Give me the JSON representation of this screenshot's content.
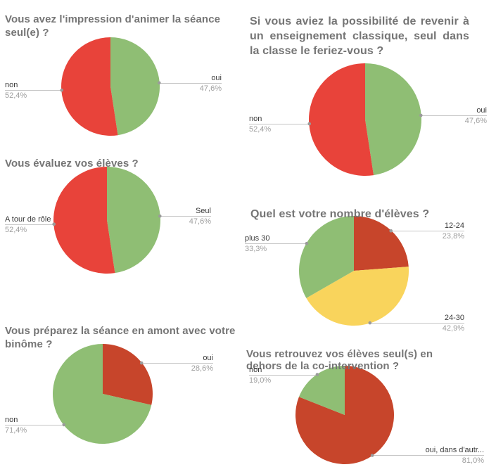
{
  "style": {
    "background": "#ffffff",
    "title_color": "#757575",
    "label_color": "#3b3b3b",
    "percent_color": "#9e9e9e",
    "leader_line_color": "#c6c6c6",
    "leader_dot_color": "#9b9b9b",
    "palette": {
      "green": "#8fbe74",
      "bright_red": "#e8433a",
      "brick_red": "#c7452b",
      "yellow": "#f9d45c"
    }
  },
  "chart_data": [
    {
      "type": "pie",
      "title": "Vous avez l'impression d'animer la séance seul(e) ?",
      "legend_position": "outside-labels",
      "slices": [
        {
          "label": "oui",
          "value": 47.6,
          "pct_text": "47,6%",
          "color": "#8fbe74",
          "label_side": "right"
        },
        {
          "label": "non",
          "value": 52.4,
          "pct_text": "52,4%",
          "color": "#e8433a",
          "label_side": "left"
        }
      ]
    },
    {
      "type": "pie",
      "title": "Si vous aviez la possibilité de revenir à un enseignement classique, seul dans la classe le feriez-vous ?",
      "legend_position": "outside-labels",
      "slices": [
        {
          "label": "oui",
          "value": 47.6,
          "pct_text": "47,6%",
          "color": "#8fbe74",
          "label_side": "right"
        },
        {
          "label": "non",
          "value": 52.4,
          "pct_text": "52,4%",
          "color": "#e8433a",
          "label_side": "left"
        }
      ]
    },
    {
      "type": "pie",
      "title": "Vous évaluez vos élèves ?",
      "legend_position": "outside-labels",
      "slices": [
        {
          "label": "Seul",
          "value": 47.6,
          "pct_text": "47,6%",
          "color": "#8fbe74",
          "label_side": "right"
        },
        {
          "label": "A tour de rôle",
          "value": 52.4,
          "pct_text": "52,4%",
          "color": "#e8433a",
          "label_side": "left"
        }
      ]
    },
    {
      "type": "pie",
      "title": "Quel est votre nombre d'élèves ?",
      "legend_position": "outside-labels",
      "slices": [
        {
          "label": "12-24",
          "value": 23.8,
          "pct_text": "23,8%",
          "color": "#c7452b",
          "label_side": "right"
        },
        {
          "label": "24-30",
          "value": 42.9,
          "pct_text": "42,9%",
          "color": "#f9d45c",
          "label_side": "right"
        },
        {
          "label": "plus 30",
          "value": 33.3,
          "pct_text": "33,3%",
          "color": "#8fbe74",
          "label_side": "left"
        }
      ]
    },
    {
      "type": "pie",
      "title": "Vous préparez la séance en amont avec votre binôme ?",
      "legend_position": "outside-labels",
      "slices": [
        {
          "label": "oui",
          "value": 28.6,
          "pct_text": "28,6%",
          "color": "#c7452b",
          "label_side": "right"
        },
        {
          "label": "non",
          "value": 71.4,
          "pct_text": "71,4%",
          "color": "#8fbe74",
          "label_side": "left"
        }
      ]
    },
    {
      "type": "pie",
      "title": "Vous retrouvez vos élèves seul(s) en dehors de la co-intervention ?",
      "legend_position": "outside-labels",
      "slices": [
        {
          "label": "oui, dans d'autr...",
          "value": 81.0,
          "pct_text": "81,0%",
          "color": "#c7452b",
          "label_side": "right"
        },
        {
          "label": "non",
          "value": 19.0,
          "pct_text": "19,0%",
          "color": "#8fbe74",
          "label_side": "left"
        }
      ]
    }
  ]
}
